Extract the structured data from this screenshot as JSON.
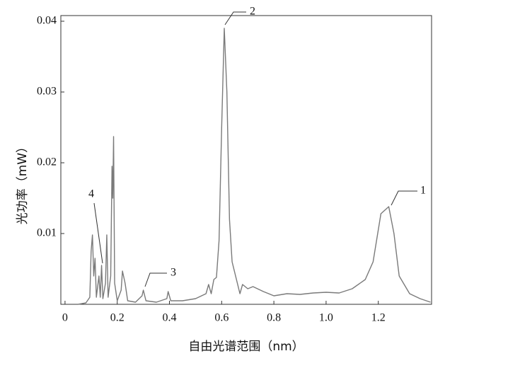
{
  "chart_data": {
    "type": "line",
    "xlabel": "自由光谱范围（nm）",
    "ylabel": "光功率（mW）",
    "annotations": [
      "1",
      "2",
      "3",
      "4"
    ],
    "xlim": [
      -0.016,
      1.404
    ],
    "ylim": [
      0,
      0.0408
    ],
    "xticks": [
      0,
      0.2,
      0.4,
      0.6,
      0.8,
      {
        "value": 1,
        "label": "1.0"
      },
      1.2
    ],
    "yticks": [
      0.01,
      0.02,
      0.03,
      0.04
    ],
    "x": [
      0.05,
      0.08,
      0.095,
      0.1,
      0.105,
      0.11,
      0.115,
      0.12,
      0.13,
      0.135,
      0.14,
      0.145,
      0.155,
      0.16,
      0.165,
      0.175,
      0.18,
      0.183,
      0.186,
      0.19,
      0.2,
      0.215,
      0.22,
      0.23,
      0.24,
      0.27,
      0.295,
      0.3,
      0.31,
      0.35,
      0.39,
      0.395,
      0.405,
      0.45,
      0.5,
      0.54,
      0.55,
      0.56,
      0.57,
      0.58,
      0.59,
      0.6,
      0.61,
      0.62,
      0.63,
      0.64,
      0.66,
      0.67,
      0.68,
      0.7,
      0.72,
      0.76,
      0.8,
      0.85,
      0.9,
      0.95,
      1.0,
      1.05,
      1.1,
      1.15,
      1.18,
      1.21,
      1.24,
      1.26,
      1.28,
      1.32,
      1.36,
      1.4
    ],
    "series": [
      {
        "color": "#7a7a7a",
        "values": [
          0,
          0.0002,
          0.001,
          0.0075,
          0.0098,
          0.004,
          0.0065,
          0.001,
          0.004,
          0.001,
          0.0055,
          0.0008,
          0.003,
          0.0098,
          0.001,
          0.004,
          0.0195,
          0.015,
          0.0237,
          0.003,
          0.0005,
          0.002,
          0.0047,
          0.003,
          0.0005,
          0.0003,
          0.0012,
          0.002,
          0.0005,
          0.0003,
          0.0008,
          0.0018,
          0.0005,
          0.0005,
          0.0008,
          0.0015,
          0.0028,
          0.0015,
          0.0035,
          0.0038,
          0.009,
          0.025,
          0.039,
          0.03,
          0.012,
          0.006,
          0.003,
          0.0015,
          0.0028,
          0.0022,
          0.0025,
          0.0018,
          0.0012,
          0.0015,
          0.0014,
          0.0016,
          0.0017,
          0.0016,
          0.0022,
          0.0035,
          0.006,
          0.0128,
          0.0138,
          0.01,
          0.004,
          0.0015,
          0.0008,
          0.0003
        ]
      }
    ]
  }
}
